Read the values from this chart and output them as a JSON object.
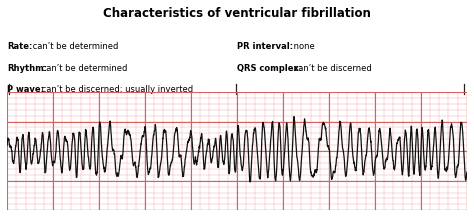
{
  "title": "Characteristics of ventricular fibrillation",
  "title_fontsize": 8.5,
  "text_left": [
    {
      "label": "Rate:",
      "value": " can’t be determined"
    },
    {
      "label": "Rhythm:",
      "value": " can’t be determined"
    },
    {
      "label": "P wave:",
      "value": " can’t be discerned; usually inverted"
    }
  ],
  "text_right": [
    {
      "label": "PR interval:",
      "value": " none"
    },
    {
      "label": "QRS complex:",
      "value": " can’t be discerned"
    }
  ],
  "bg_color": "#ffffff",
  "grid_color_major": "#d96060",
  "grid_color_minor": "#f0b0b0",
  "ecg_bg_color": "#fce8e8",
  "ecg_color": "#111111",
  "ecg_linewidth": 0.9,
  "label_fontsize": 6.0,
  "tick_color": "#222222"
}
